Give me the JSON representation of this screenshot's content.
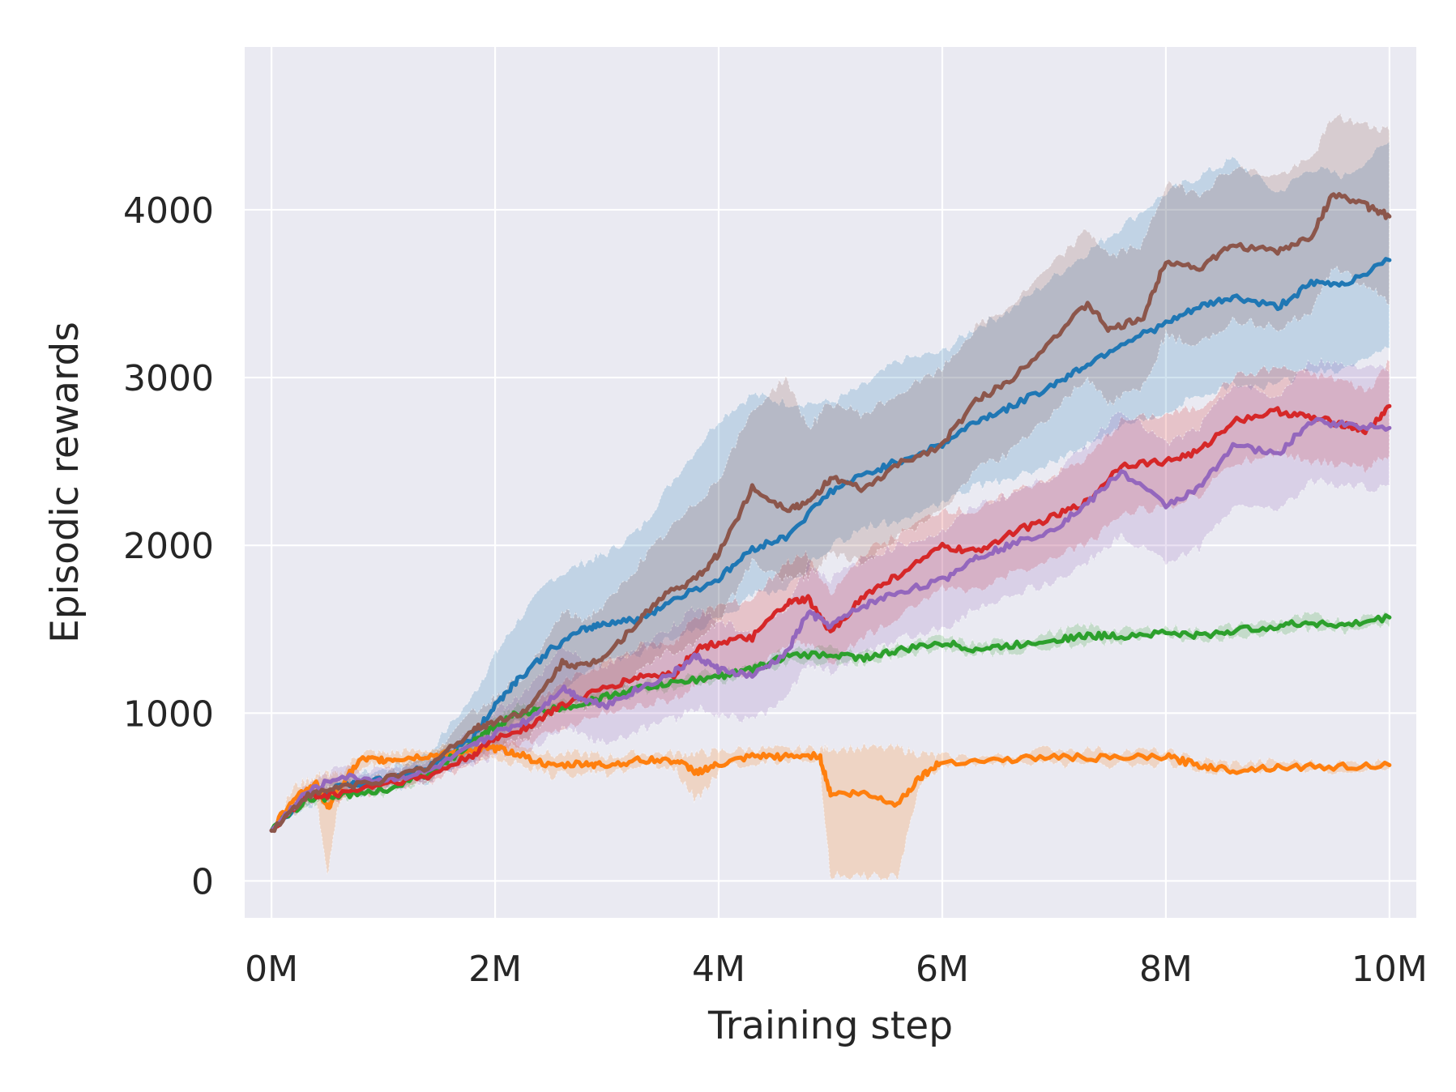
{
  "chart_data": {
    "type": "line",
    "title": "",
    "xlabel": "Training step",
    "ylabel": "Episodic rewards",
    "xlim": [
      -0.24,
      10.24
    ],
    "ylim": [
      -220,
      4970
    ],
    "x_ticks": [
      {
        "value": 0,
        "label": "0M"
      },
      {
        "value": 2,
        "label": "2M"
      },
      {
        "value": 4,
        "label": "4M"
      },
      {
        "value": 6,
        "label": "6M"
      },
      {
        "value": 8,
        "label": "8M"
      },
      {
        "value": 10,
        "label": "10M"
      }
    ],
    "y_ticks": [
      {
        "value": 0,
        "label": "0"
      },
      {
        "value": 1000,
        "label": "1000"
      },
      {
        "value": 2000,
        "label": "2000"
      },
      {
        "value": 3000,
        "label": "3000"
      },
      {
        "value": 4000,
        "label": "4000"
      }
    ],
    "grid": true,
    "background": "#eaeaf2",
    "series": [
      {
        "name": "blue",
        "color": "#1f77b4",
        "x": [
          0,
          0.3,
          0.6,
          1.0,
          1.4,
          1.8,
          2.0,
          2.2,
          2.5,
          2.8,
          3.0,
          3.3,
          3.6,
          4.0,
          4.3,
          4.6,
          5.0,
          5.3,
          5.6,
          6.0,
          6.3,
          6.6,
          7.0,
          7.3,
          7.6,
          8.0,
          8.3,
          8.6,
          9.0,
          9.3,
          9.6,
          10.0
        ],
        "y": [
          300,
          500,
          560,
          600,
          680,
          850,
          1050,
          1200,
          1380,
          1500,
          1540,
          1560,
          1680,
          1800,
          1980,
          2050,
          2320,
          2420,
          2500,
          2600,
          2740,
          2820,
          2960,
          3080,
          3200,
          3320,
          3420,
          3480,
          3420,
          3560,
          3560,
          3700
        ],
        "lower": [
          300,
          450,
          500,
          540,
          600,
          700,
          820,
          950,
          1100,
          1250,
          1300,
          1350,
          1450,
          1550,
          1700,
          1750,
          2000,
          2100,
          2150,
          2250,
          2350,
          2400,
          2500,
          2600,
          2700,
          2800,
          2900,
          2950,
          2950,
          3050,
          3050,
          3200
        ],
        "upper": [
          300,
          550,
          620,
          660,
          760,
          1100,
          1350,
          1550,
          1800,
          1900,
          1950,
          2100,
          2400,
          2750,
          2900,
          2850,
          2850,
          2950,
          3100,
          3150,
          3300,
          3400,
          3600,
          3750,
          3900,
          4100,
          4200,
          4300,
          4100,
          4250,
          4200,
          4400
        ]
      },
      {
        "name": "orange",
        "color": "#ff7f0e",
        "x": [
          0,
          0.2,
          0.4,
          0.5,
          0.6,
          0.8,
          1.0,
          1.2,
          1.5,
          1.8,
          2.0,
          2.2,
          2.5,
          2.8,
          3.0,
          3.3,
          3.6,
          3.8,
          4.0,
          4.3,
          4.6,
          4.9,
          5.0,
          5.3,
          5.6,
          5.8,
          6.0,
          6.5,
          7.0,
          7.5,
          8.0,
          8.3,
          8.6,
          9.0,
          9.5,
          10.0
        ],
        "y": [
          300,
          500,
          580,
          430,
          560,
          720,
          720,
          730,
          750,
          780,
          790,
          760,
          680,
          700,
          690,
          720,
          720,
          650,
          690,
          740,
          740,
          750,
          520,
          520,
          460,
          620,
          710,
          720,
          740,
          730,
          740,
          690,
          660,
          680,
          680,
          690
        ],
        "lower": [
          300,
          450,
          500,
          40,
          450,
          680,
          690,
          700,
          720,
          740,
          730,
          700,
          630,
          650,
          640,
          690,
          680,
          480,
          650,
          710,
          720,
          720,
          30,
          30,
          30,
          560,
          700,
          700,
          700,
          690,
          700,
          670,
          640,
          660,
          660,
          680
        ],
        "upper": [
          300,
          560,
          630,
          640,
          630,
          770,
          760,
          770,
          790,
          820,
          840,
          820,
          750,
          760,
          740,
          760,
          760,
          760,
          770,
          790,
          780,
          790,
          790,
          790,
          790,
          760,
          740,
          740,
          790,
          780,
          770,
          720,
          700,
          710,
          700,
          710
        ]
      },
      {
        "name": "green",
        "color": "#2ca02c",
        "x": [
          0,
          0.3,
          0.6,
          1.0,
          1.4,
          1.8,
          2.0,
          2.2,
          2.5,
          2.8,
          3.0,
          3.3,
          3.6,
          4.0,
          4.3,
          4.6,
          5.0,
          5.3,
          5.6,
          6.0,
          6.3,
          6.6,
          7.0,
          7.3,
          7.6,
          8.0,
          8.3,
          8.6,
          9.0,
          9.3,
          9.6,
          10.0
        ],
        "y": [
          300,
          480,
          510,
          540,
          640,
          820,
          920,
          1000,
          1020,
          1060,
          1100,
          1150,
          1180,
          1220,
          1260,
          1340,
          1350,
          1330,
          1370,
          1420,
          1380,
          1400,
          1440,
          1460,
          1460,
          1480,
          1460,
          1490,
          1520,
          1540,
          1520,
          1570
        ],
        "lower": [
          300,
          460,
          490,
          520,
          610,
          780,
          880,
          960,
          990,
          1030,
          1070,
          1120,
          1150,
          1190,
          1230,
          1300,
          1310,
          1300,
          1340,
          1390,
          1350,
          1370,
          1400,
          1420,
          1430,
          1450,
          1430,
          1460,
          1490,
          1500,
          1490,
          1540
        ],
        "upper": [
          300,
          500,
          530,
          560,
          670,
          860,
          960,
          1040,
          1050,
          1090,
          1130,
          1180,
          1210,
          1250,
          1290,
          1380,
          1390,
          1360,
          1400,
          1450,
          1410,
          1430,
          1480,
          1520,
          1490,
          1510,
          1490,
          1520,
          1550,
          1580,
          1550,
          1600
        ]
      },
      {
        "name": "red",
        "color": "#d62728",
        "x": [
          0,
          0.3,
          0.6,
          1.0,
          1.4,
          1.8,
          2.0,
          2.3,
          2.6,
          3.0,
          3.3,
          3.6,
          3.8,
          4.0,
          4.3,
          4.6,
          4.8,
          5.0,
          5.3,
          5.6,
          6.0,
          6.3,
          6.6,
          7.0,
          7.3,
          7.6,
          8.0,
          8.3,
          8.6,
          9.0,
          9.3,
          9.6,
          9.8,
          10.0
        ],
        "y": [
          300,
          500,
          520,
          580,
          620,
          750,
          850,
          920,
          1050,
          1150,
          1220,
          1230,
          1380,
          1420,
          1450,
          1650,
          1680,
          1480,
          1700,
          1820,
          1990,
          1960,
          2070,
          2170,
          2260,
          2480,
          2500,
          2560,
          2740,
          2800,
          2760,
          2720,
          2680,
          2830
        ],
        "lower": [
          300,
          460,
          480,
          540,
          580,
          700,
          780,
          820,
          920,
          1000,
          1050,
          1080,
          1180,
          1220,
          1240,
          1400,
          1420,
          1300,
          1450,
          1580,
          1750,
          1720,
          1830,
          1930,
          2000,
          2200,
          2230,
          2300,
          2480,
          2550,
          2500,
          2480,
          2450,
          2550
        ],
        "upper": [
          300,
          540,
          560,
          620,
          660,
          800,
          920,
          1020,
          1180,
          1300,
          1400,
          1420,
          1580,
          1640,
          1680,
          1900,
          1940,
          1700,
          1960,
          2060,
          2220,
          2200,
          2310,
          2420,
          2520,
          2740,
          2780,
          2820,
          3000,
          3060,
          3020,
          2980,
          2920,
          3100
        ]
      },
      {
        "name": "purple",
        "color": "#9467bd",
        "x": [
          0,
          0.3,
          0.6,
          1.0,
          1.4,
          1.8,
          2.0,
          2.3,
          2.6,
          2.8,
          3.0,
          3.3,
          3.6,
          3.8,
          4.0,
          4.3,
          4.6,
          4.8,
          5.0,
          5.3,
          5.6,
          6.0,
          6.3,
          6.6,
          7.0,
          7.3,
          7.6,
          8.0,
          8.3,
          8.6,
          9.0,
          9.3,
          9.6,
          10.0
        ],
        "y": [
          300,
          520,
          620,
          600,
          650,
          800,
          880,
          960,
          1150,
          1080,
          1050,
          1150,
          1240,
          1340,
          1260,
          1220,
          1350,
          1600,
          1520,
          1640,
          1720,
          1790,
          1930,
          2000,
          2100,
          2250,
          2440,
          2240,
          2340,
          2600,
          2540,
          2740,
          2720,
          2700
        ],
        "lower": [
          300,
          480,
          570,
          550,
          600,
          700,
          740,
          780,
          900,
          860,
          820,
          900,
          960,
          1040,
          980,
          960,
          1080,
          1300,
          1250,
          1360,
          1440,
          1500,
          1620,
          1700,
          1780,
          1900,
          2060,
          1900,
          1980,
          2240,
          2200,
          2380,
          2360,
          2340
        ],
        "upper": [
          300,
          560,
          670,
          650,
          700,
          900,
          1020,
          1140,
          1400,
          1300,
          1280,
          1400,
          1520,
          1640,
          1540,
          1480,
          1620,
          1900,
          1800,
          1920,
          2000,
          2080,
          2240,
          2300,
          2420,
          2600,
          2820,
          2600,
          2700,
          2960,
          2880,
          3100,
          3080,
          3060
        ]
      },
      {
        "name": "brown",
        "color": "#8c564b",
        "x": [
          0,
          0.3,
          0.6,
          1.0,
          1.4,
          1.8,
          2.0,
          2.3,
          2.6,
          2.8,
          3.0,
          3.3,
          3.5,
          3.8,
          4.0,
          4.3,
          4.6,
          4.8,
          5.0,
          5.3,
          5.6,
          6.0,
          6.3,
          6.6,
          7.0,
          7.3,
          7.5,
          7.8,
          8.0,
          8.3,
          8.6,
          9.0,
          9.3,
          9.5,
          9.8,
          10.0
        ],
        "y": [
          300,
          500,
          560,
          600,
          680,
          900,
          950,
          1020,
          1300,
          1280,
          1350,
          1560,
          1700,
          1800,
          1950,
          2340,
          2220,
          2250,
          2400,
          2330,
          2480,
          2600,
          2860,
          2980,
          3240,
          3440,
          3280,
          3360,
          3700,
          3650,
          3790,
          3750,
          3840,
          4100,
          4020,
          3960
        ],
        "lower": [
          300,
          460,
          520,
          560,
          630,
          800,
          820,
          850,
          1050,
          1040,
          1080,
          1250,
          1350,
          1420,
          1550,
          1900,
          1800,
          1820,
          1950,
          1900,
          2050,
          2200,
          2450,
          2550,
          2800,
          3000,
          2850,
          2950,
          3250,
          3200,
          3350,
          3300,
          3400,
          3650,
          3550,
          3450
        ],
        "upper": [
          300,
          540,
          600,
          640,
          730,
          1000,
          1100,
          1250,
          1600,
          1560,
          1650,
          1900,
          2050,
          2250,
          2400,
          2800,
          3000,
          2700,
          2850,
          2780,
          2900,
          3050,
          3300,
          3420,
          3680,
          3880,
          3720,
          3800,
          4150,
          4100,
          4250,
          4200,
          4300,
          4560,
          4500,
          4480
        ]
      }
    ]
  }
}
